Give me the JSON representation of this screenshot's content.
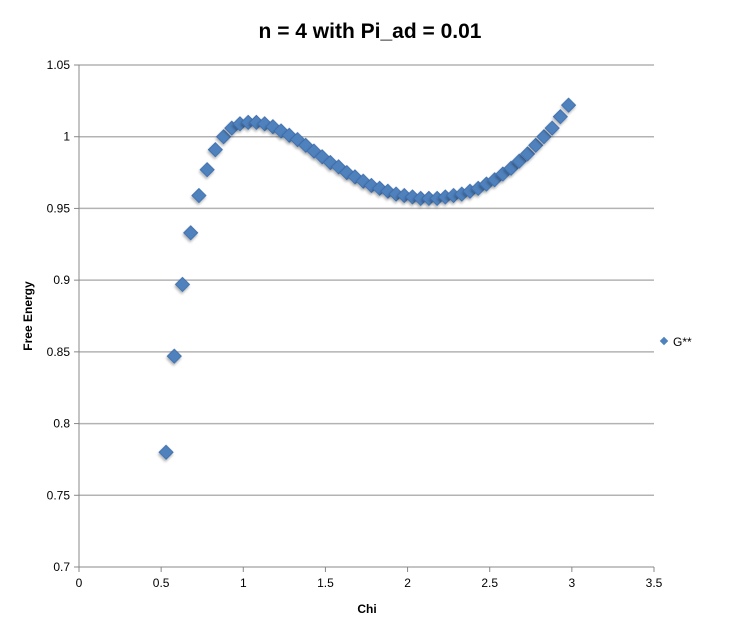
{
  "chart_data": {
    "type": "scatter",
    "title": "n = 4 with Pi_ad = 0.01",
    "xlabel": "Chi",
    "ylabel": "Free Energy",
    "xlim": [
      0,
      3.5
    ],
    "ylim": [
      0.7,
      1.05
    ],
    "xticks": [
      "0",
      "0.5",
      "1",
      "1.5",
      "2",
      "2.5",
      "3",
      "3.5"
    ],
    "yticks": [
      "0.7",
      "0.75",
      "0.8",
      "0.85",
      "0.9",
      "0.95",
      "1",
      "1.05"
    ],
    "grid": "horizontal",
    "legend_position": "right",
    "marker_color": "#4F81BD",
    "series": [
      {
        "name": "G**",
        "x": [
          0.53,
          0.58,
          0.63,
          0.68,
          0.73,
          0.78,
          0.83,
          0.88,
          0.93,
          0.98,
          1.03,
          1.08,
          1.13,
          1.18,
          1.23,
          1.28,
          1.33,
          1.38,
          1.43,
          1.48,
          1.53,
          1.58,
          1.63,
          1.68,
          1.73,
          1.78,
          1.83,
          1.88,
          1.93,
          1.98,
          2.03,
          2.08,
          2.13,
          2.18,
          2.23,
          2.28,
          2.33,
          2.38,
          2.43,
          2.48,
          2.53,
          2.58,
          2.63,
          2.68,
          2.73,
          2.78,
          2.83,
          2.88,
          2.93,
          2.98
        ],
        "y": [
          0.78,
          0.847,
          0.897,
          0.933,
          0.959,
          0.977,
          0.991,
          1.0,
          1.006,
          1.009,
          1.01,
          1.01,
          1.009,
          1.007,
          1.004,
          1.001,
          0.998,
          0.994,
          0.99,
          0.986,
          0.982,
          0.979,
          0.975,
          0.972,
          0.969,
          0.966,
          0.964,
          0.962,
          0.96,
          0.959,
          0.958,
          0.957,
          0.957,
          0.957,
          0.958,
          0.959,
          0.96,
          0.962,
          0.964,
          0.967,
          0.97,
          0.974,
          0.978,
          0.983,
          0.988,
          0.994,
          1.0,
          1.006,
          1.014,
          1.022
        ]
      }
    ]
  }
}
